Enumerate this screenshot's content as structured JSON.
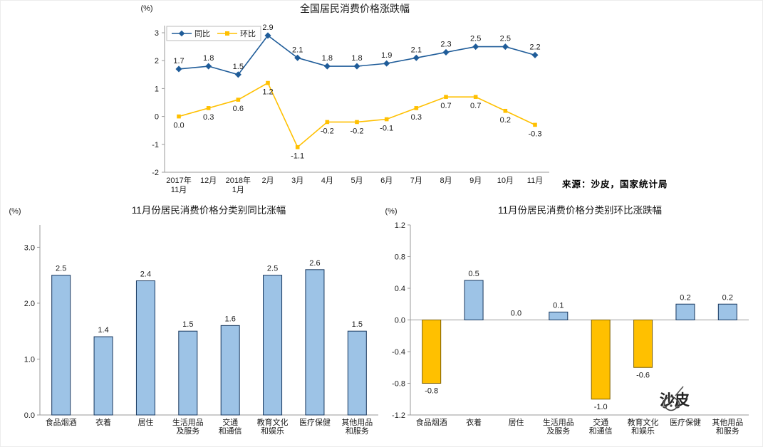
{
  "meta": {
    "source_note": "来源：沙皮，国家统计局",
    "watermark": "沙皮"
  },
  "colors": {
    "yoy_line": "#1F5C99",
    "mom_line": "#FFC000",
    "bar_blue": "#9DC3E6",
    "bar_blue_edge": "#17375E",
    "bar_gold": "#FFC000",
    "bar_gold_edge": "#7F6000",
    "axis": "#999999",
    "text": "#1a1a1a"
  },
  "chart_data": [
    {
      "type": "line",
      "title": "全国居民消费价格涨跌幅",
      "unit_label": "(%)",
      "categories": [
        "2017年\n11月",
        "12月",
        "2018年\n1月",
        "2月",
        "3月",
        "4月",
        "5月",
        "6月",
        "7月",
        "8月",
        "9月",
        "10月",
        "11月"
      ],
      "series": [
        {
          "name": "同比",
          "marker": "diamond",
          "color": "#1F5C99",
          "values": [
            1.7,
            1.8,
            1.5,
            2.9,
            2.1,
            1.8,
            1.8,
            1.9,
            2.1,
            2.3,
            2.5,
            2.5,
            2.2
          ]
        },
        {
          "name": "环比",
          "marker": "square",
          "color": "#FFC000",
          "values": [
            0.0,
            0.3,
            0.6,
            1.2,
            -1.1,
            -0.2,
            -0.2,
            -0.1,
            0.3,
            0.7,
            0.7,
            0.2,
            -0.3
          ]
        }
      ],
      "ylim": [
        -2,
        3
      ],
      "ytick_step": 1,
      "legend_position": "top-left",
      "grid": false
    },
    {
      "type": "bar",
      "title": "11月份居民消费价格分类别同比涨幅",
      "unit_label": "(%)",
      "categories": [
        "食品烟酒",
        "衣着",
        "居住",
        "生活用品\n及服务",
        "交通\n和通信",
        "教育文化\n和娱乐",
        "医疗保健",
        "其他用品\n和服务"
      ],
      "values": [
        2.5,
        1.4,
        2.4,
        1.5,
        1.6,
        2.5,
        2.6,
        1.5
      ],
      "ylim": [
        0,
        3.4
      ],
      "yticks": [
        0.0,
        1.0,
        2.0,
        3.0
      ],
      "bar_color": "#9DC3E6",
      "bar_edge": "#17375E",
      "grid": false
    },
    {
      "type": "bar",
      "title": "11月份居民消费价格分类别环比涨跌幅",
      "unit_label": "(%)",
      "categories": [
        "食品烟酒",
        "衣着",
        "居住",
        "生活用品\n及服务",
        "交通\n和通信",
        "教育文化\n和娱乐",
        "医疗保健",
        "其他用品\n和服务"
      ],
      "values": [
        -0.8,
        0.5,
        0.0,
        0.1,
        -1.0,
        -0.6,
        0.2,
        0.2
      ],
      "ylim": [
        -1.2,
        1.2
      ],
      "yticks": [
        -1.2,
        -0.8,
        -0.4,
        0.0,
        0.4,
        0.8,
        1.2
      ],
      "positive_color": "#9DC3E6",
      "positive_edge": "#17375E",
      "negative_color": "#FFC000",
      "negative_edge": "#7F6000",
      "grid": false
    }
  ]
}
